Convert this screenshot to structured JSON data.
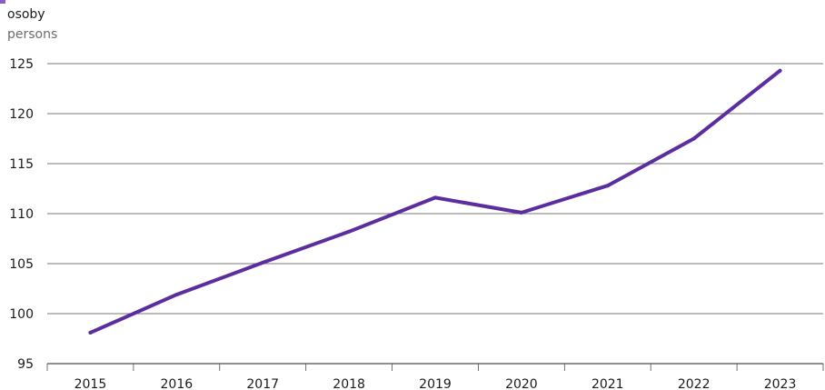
{
  "header": {
    "unit_primary": "osoby",
    "unit_secondary": "persons"
  },
  "colors": {
    "series": "#5b2d9e",
    "grid": "#4d4d4d",
    "accent": "#8a5cc7"
  },
  "chart_data": {
    "type": "line",
    "title": "",
    "xlabel": "",
    "ylabel": "osoby / persons",
    "categories": [
      "2015",
      "2016",
      "2017",
      "2018",
      "2019",
      "2020",
      "2021",
      "2022",
      "2023"
    ],
    "series": [
      {
        "values": [
          98.1,
          101.9,
          105.1,
          108.2,
          111.6,
          110.1,
          112.8,
          117.5,
          124.3
        ]
      }
    ],
    "ylim": [
      95,
      125
    ],
    "yticks": [
      95,
      100,
      105,
      110,
      115,
      120,
      125
    ],
    "grid": true,
    "legend": "none"
  }
}
